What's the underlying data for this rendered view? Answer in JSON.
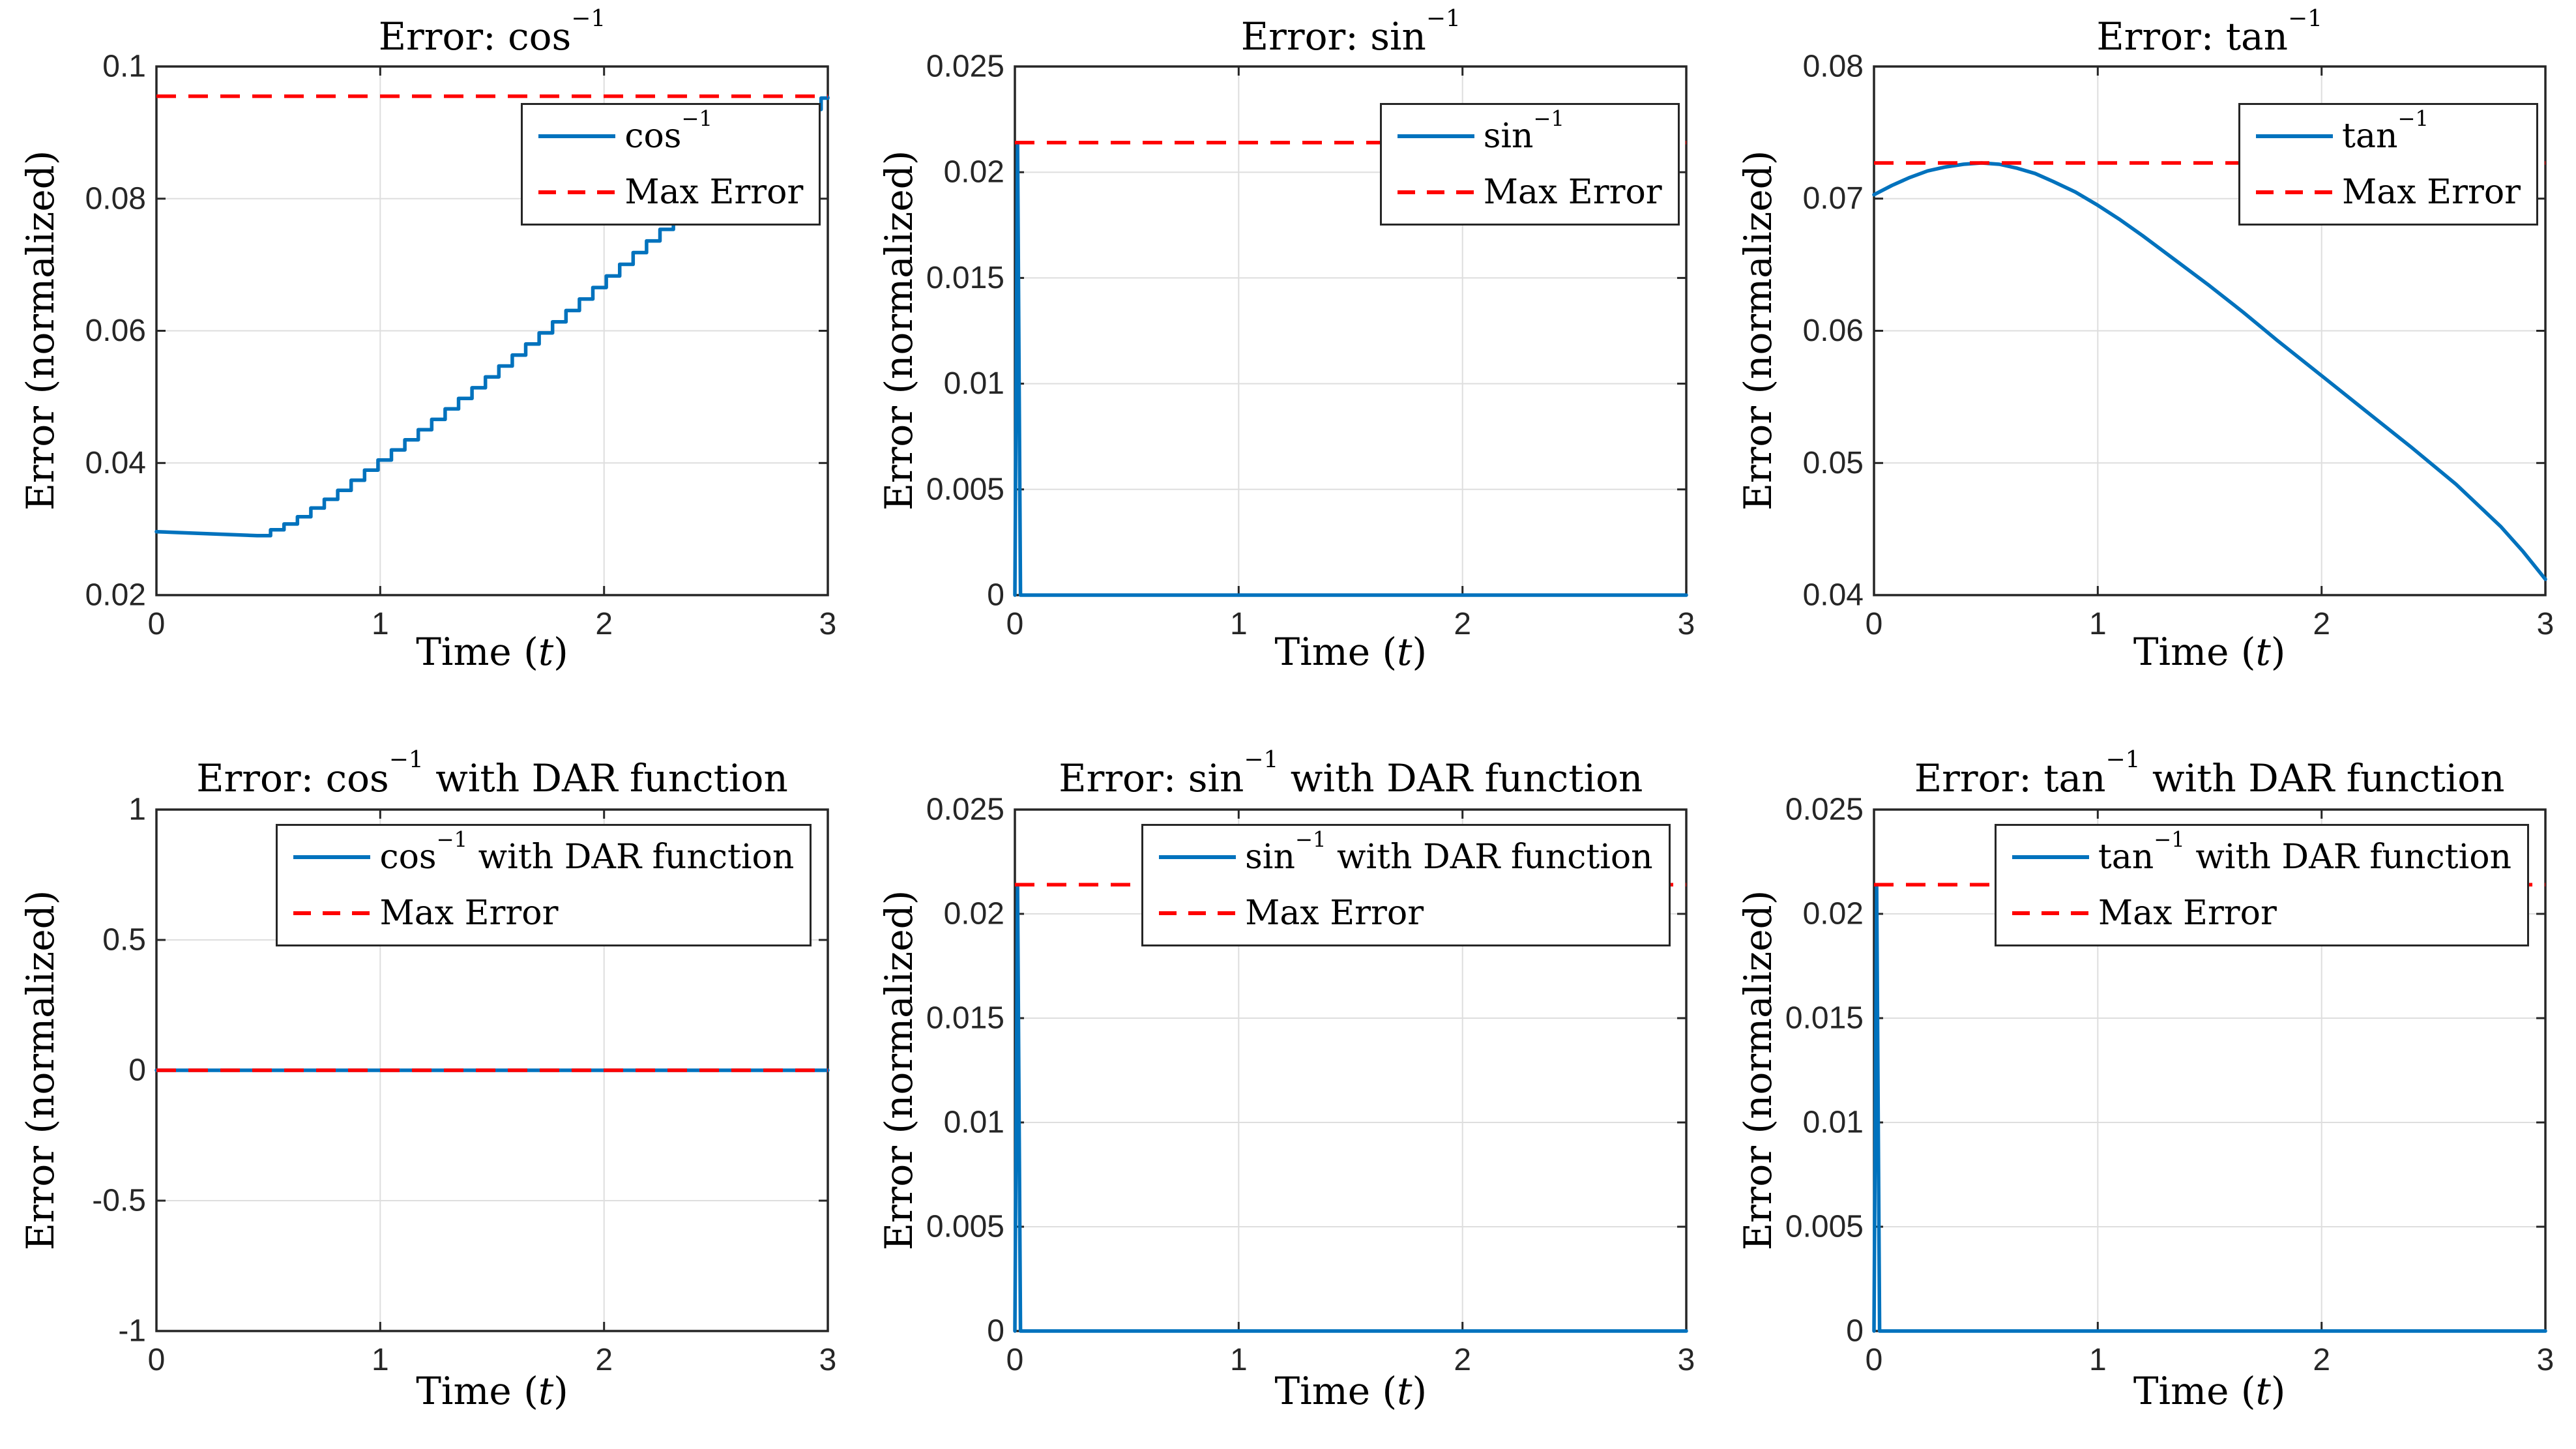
{
  "figure": {
    "background": "#ffffff",
    "colors": {
      "blue": "#0072BD",
      "red": "#FF0000",
      "grid": "#DEDEDE",
      "axis": "#262626",
      "tick_text": "#262626"
    }
  },
  "chart_data": {
    "type": "line",
    "rows": 2,
    "cols": 3,
    "panels": [
      {
        "id": "cos-inverse-error",
        "title": {
          "pre": "Error: ",
          "base": "cos",
          "sup": "−1",
          "post": ""
        },
        "xlabel": {
          "pre": "Time (",
          "var": "t",
          "post": ")"
        },
        "ylabel": "Error (normalized)",
        "xlim": [
          0,
          3
        ],
        "ylim": [
          0.02,
          0.1
        ],
        "xticks": {
          "values": [
            0,
            1,
            2,
            3
          ],
          "labels": [
            "0",
            "1",
            "2",
            "3"
          ]
        },
        "yticks": {
          "values": [
            0.02,
            0.04,
            0.06,
            0.08,
            0.1
          ],
          "labels": [
            "0.02",
            "0.04",
            "0.06",
            "0.08",
            "0.1"
          ]
        },
        "max_error": 0.0955,
        "series": {
          "label": {
            "base": "cos",
            "sup": "−1",
            "post": ""
          },
          "segments": [
            {
              "style": "line",
              "points": [
                [
                  0,
                  0.0296
                ],
                [
                  0.15,
                  0.0294
                ],
                [
                  0.3,
                  0.0292
                ],
                [
                  0.45,
                  0.029
                ]
              ]
            },
            {
              "style": "staircase",
              "step": 0.06,
              "points": [
                [
                  0.45,
                  0.029
                ],
                [
                  0.6,
                  0.0312
                ],
                [
                  0.8,
                  0.0356
                ],
                [
                  1.0,
                  0.0407
                ],
                [
                  1.2,
                  0.0458
                ],
                [
                  1.4,
                  0.0511
                ],
                [
                  1.6,
                  0.0566
                ],
                [
                  1.8,
                  0.0622
                ],
                [
                  2.0,
                  0.068
                ],
                [
                  2.2,
                  0.0739
                ],
                [
                  2.4,
                  0.0797
                ],
                [
                  2.6,
                  0.0853
                ],
                [
                  2.75,
                  0.0896
                ],
                [
                  2.88,
                  0.0931
                ],
                [
                  2.9,
                  0.0927
                ],
                [
                  2.93,
                  0.0951
                ],
                [
                  3.0,
                  0.0953
                ]
              ]
            }
          ]
        },
        "legend": {
          "position": "northeast",
          "max_label": "Max Error"
        }
      },
      {
        "id": "sin-inverse-error",
        "title": {
          "pre": "Error: ",
          "base": "sin",
          "sup": "−1",
          "post": ""
        },
        "xlabel": {
          "pre": "Time (",
          "var": "t",
          "post": ")"
        },
        "ylabel": "Error (normalized)",
        "xlim": [
          0,
          3
        ],
        "ylim": [
          0,
          0.025
        ],
        "xticks": {
          "values": [
            0,
            1,
            2,
            3
          ],
          "labels": [
            "0",
            "1",
            "2",
            "3"
          ]
        },
        "yticks": {
          "values": [
            0,
            0.005,
            0.01,
            0.015,
            0.02,
            0.025
          ],
          "labels": [
            "0",
            "0.005",
            "0.01",
            "0.015",
            "0.02",
            "0.025"
          ]
        },
        "max_error": 0.0214,
        "series": {
          "label": {
            "base": "sin",
            "sup": "−1",
            "post": ""
          },
          "segments": [
            {
              "style": "line",
              "points": [
                [
                  0,
                  0
                ],
                [
                  0.012,
                  0.0214
                ],
                [
                  0.025,
                  0
                ],
                [
                  3,
                  0
                ]
              ]
            }
          ]
        },
        "legend": {
          "position": "northeast",
          "max_label": "Max Error"
        }
      },
      {
        "id": "tan-inverse-error",
        "title": {
          "pre": "Error: ",
          "base": "tan",
          "sup": "−1",
          "post": ""
        },
        "xlabel": {
          "pre": "Time (",
          "var": "t",
          "post": ")"
        },
        "ylabel": "Error (normalized)",
        "xlim": [
          0,
          3
        ],
        "ylim": [
          0.04,
          0.08
        ],
        "xticks": {
          "values": [
            0,
            1,
            2,
            3
          ],
          "labels": [
            "0",
            "1",
            "2",
            "3"
          ]
        },
        "yticks": {
          "values": [
            0.04,
            0.05,
            0.06,
            0.07,
            0.08
          ],
          "labels": [
            "0.04",
            "0.05",
            "0.06",
            "0.07",
            "0.08"
          ]
        },
        "max_error": 0.0727,
        "series": {
          "label": {
            "base": "tan",
            "sup": "−1",
            "post": ""
          },
          "segments": [
            {
              "style": "line",
              "points": [
                [
                  0,
                  0.0703
                ],
                [
                  0.08,
                  0.071
                ],
                [
                  0.16,
                  0.0716
                ],
                [
                  0.24,
                  0.0721
                ],
                [
                  0.32,
                  0.0724
                ],
                [
                  0.4,
                  0.0726
                ],
                [
                  0.48,
                  0.0727
                ],
                [
                  0.56,
                  0.0726
                ],
                [
                  0.64,
                  0.0723
                ],
                [
                  0.72,
                  0.0719
                ],
                [
                  0.8,
                  0.0713
                ],
                [
                  0.9,
                  0.0705
                ],
                [
                  1.0,
                  0.0695
                ],
                [
                  1.1,
                  0.0684
                ],
                [
                  1.2,
                  0.0672
                ],
                [
                  1.35,
                  0.0653
                ],
                [
                  1.5,
                  0.0634
                ],
                [
                  1.65,
                  0.0614
                ],
                [
                  1.8,
                  0.0593
                ],
                [
                  2.0,
                  0.0566
                ],
                [
                  2.2,
                  0.0539
                ],
                [
                  2.4,
                  0.0512
                ],
                [
                  2.6,
                  0.0484
                ],
                [
                  2.8,
                  0.0452
                ],
                [
                  2.9,
                  0.0433
                ],
                [
                  3.0,
                  0.0412
                ]
              ]
            }
          ]
        },
        "legend": {
          "position": "northeast",
          "max_label": "Max Error"
        }
      },
      {
        "id": "cos-inverse-dar-error",
        "title": {
          "pre": "Error: ",
          "base": "cos",
          "sup": "−1",
          "post": " with DAR function"
        },
        "xlabel": {
          "pre": "Time (",
          "var": "t",
          "post": ")"
        },
        "ylabel": "Error (normalized)",
        "xlim": [
          0,
          3
        ],
        "ylim": [
          -1,
          1
        ],
        "xticks": {
          "values": [
            0,
            1,
            2,
            3
          ],
          "labels": [
            "0",
            "1",
            "2",
            "3"
          ]
        },
        "yticks": {
          "values": [
            -1,
            -0.5,
            0,
            0.5,
            1
          ],
          "labels": [
            "-1",
            "-0.5",
            "0",
            "0.5",
            "1"
          ]
        },
        "max_error": 0,
        "series": {
          "label": {
            "base": "cos",
            "sup": "−1",
            "post": " with DAR function"
          },
          "segments": [
            {
              "style": "line",
              "points": [
                [
                  0,
                  0
                ],
                [
                  3,
                  0
                ]
              ]
            }
          ]
        },
        "legend": {
          "position": "northeast",
          "max_label": "Max Error"
        }
      },
      {
        "id": "sin-inverse-dar-error",
        "title": {
          "pre": "Error: ",
          "base": "sin",
          "sup": "−1",
          "post": " with DAR function"
        },
        "xlabel": {
          "pre": "Time (",
          "var": "t",
          "post": ")"
        },
        "ylabel": "Error (normalized)",
        "xlim": [
          0,
          3
        ],
        "ylim": [
          0,
          0.025
        ],
        "xticks": {
          "values": [
            0,
            1,
            2,
            3
          ],
          "labels": [
            "0",
            "1",
            "2",
            "3"
          ]
        },
        "yticks": {
          "values": [
            0,
            0.005,
            0.01,
            0.015,
            0.02,
            0.025
          ],
          "labels": [
            "0",
            "0.005",
            "0.01",
            "0.015",
            "0.02",
            "0.025"
          ]
        },
        "max_error": 0.0214,
        "series": {
          "label": {
            "base": "sin",
            "sup": "−1",
            "post": " with DAR function"
          },
          "segments": [
            {
              "style": "line",
              "points": [
                [
                  0,
                  0
                ],
                [
                  0.012,
                  0.0213
                ],
                [
                  0.025,
                  0
                ],
                [
                  3,
                  0
                ]
              ]
            }
          ]
        },
        "legend": {
          "position": "northeast",
          "max_label": "Max Error"
        }
      },
      {
        "id": "tan-inverse-dar-error",
        "title": {
          "pre": "Error: ",
          "base": "tan",
          "sup": "−1",
          "post": " with DAR function"
        },
        "xlabel": {
          "pre": "Time (",
          "var": "t",
          "post": ")"
        },
        "ylabel": "Error (normalized)",
        "xlim": [
          0,
          3
        ],
        "ylim": [
          0,
          0.025
        ],
        "xticks": {
          "values": [
            0,
            1,
            2,
            3
          ],
          "labels": [
            "0",
            "1",
            "2",
            "3"
          ]
        },
        "yticks": {
          "values": [
            0,
            0.005,
            0.01,
            0.015,
            0.02,
            0.025
          ],
          "labels": [
            "0",
            "0.005",
            "0.01",
            "0.015",
            "0.02",
            "0.025"
          ]
        },
        "max_error": 0.0214,
        "series": {
          "label": {
            "base": "tan",
            "sup": "−1",
            "post": " with DAR function"
          },
          "segments": [
            {
              "style": "line",
              "points": [
                [
                  0,
                  0
                ],
                [
                  0.012,
                  0.0213
                ],
                [
                  0.025,
                  0
                ],
                [
                  3,
                  0
                ]
              ]
            }
          ]
        },
        "legend": {
          "position": "northeast",
          "max_label": "Max Error"
        }
      }
    ]
  }
}
